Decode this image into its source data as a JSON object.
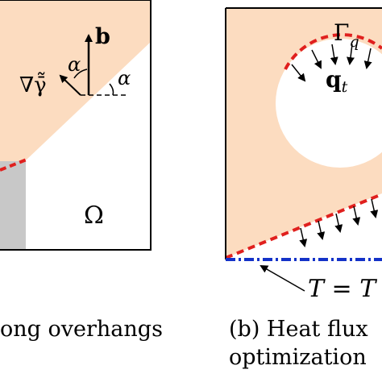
{
  "colors": {
    "material": "#fcdcc0",
    "support": "#c8c8c8",
    "boundary_flux": "#e0201e",
    "boundary_temperature": "#1432c8",
    "line": "#000000"
  },
  "panel_a": {
    "vector_label": "b",
    "gradient_label": "∇γ̄̃",
    "angle_label_1": "α",
    "angle_label_2": "α",
    "domain_label": "Ω",
    "caption_line1": "ong  overhangs"
  },
  "panel_b": {
    "flux_boundary_label": "Γ",
    "flux_boundary_subscript": "q",
    "flux_label": "q",
    "flux_subscript": "t",
    "temperature_label": "T = T",
    "caption_line1": "(b)  Heat  flux",
    "caption_line2": "optimization"
  }
}
